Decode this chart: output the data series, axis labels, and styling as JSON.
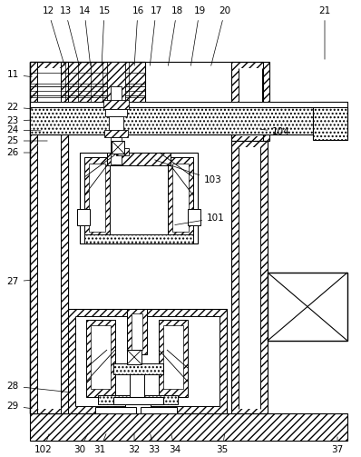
{
  "bg_color": "#ffffff",
  "line_color": "#000000",
  "top_labels": [
    [
      "12",
      53,
      12,
      72,
      75
    ],
    [
      "13",
      72,
      12,
      88,
      75
    ],
    [
      "14",
      93,
      12,
      100,
      75
    ],
    [
      "15",
      115,
      12,
      112,
      75
    ],
    [
      "16",
      152,
      12,
      148,
      75
    ],
    [
      "17",
      172,
      12,
      165,
      75
    ],
    [
      "18",
      195,
      12,
      185,
      75
    ],
    [
      "19",
      220,
      12,
      210,
      75
    ],
    [
      "20",
      248,
      12,
      232,
      75
    ],
    [
      "21",
      358,
      12,
      358,
      68
    ]
  ],
  "left_labels": [
    [
      "11",
      14,
      82,
      38,
      85
    ],
    [
      "22",
      14,
      118,
      38,
      120
    ],
    [
      "23",
      14,
      133,
      38,
      132
    ],
    [
      "24",
      14,
      143,
      48,
      144
    ],
    [
      "25",
      14,
      155,
      55,
      155
    ],
    [
      "26",
      14,
      168,
      38,
      168
    ],
    [
      "27",
      14,
      310,
      38,
      308
    ]
  ],
  "right_labels": [
    [
      "104",
      310,
      145,
      285,
      142
    ],
    [
      "103",
      235,
      198,
      168,
      175
    ],
    [
      "101",
      238,
      240,
      190,
      248
    ],
    [
      "28",
      14,
      425,
      80,
      432
    ],
    [
      "29",
      14,
      447,
      38,
      450
    ]
  ],
  "bottom_labels": [
    [
      "102",
      48,
      495,
      55,
      475
    ],
    [
      "30",
      88,
      495,
      98,
      475
    ],
    [
      "31",
      110,
      495,
      118,
      475
    ],
    [
      "32",
      148,
      495,
      148,
      475
    ],
    [
      "33",
      170,
      495,
      165,
      475
    ],
    [
      "34",
      193,
      495,
      188,
      475
    ],
    [
      "35",
      245,
      495,
      248,
      475
    ],
    [
      "37",
      372,
      495,
      372,
      478
    ]
  ]
}
